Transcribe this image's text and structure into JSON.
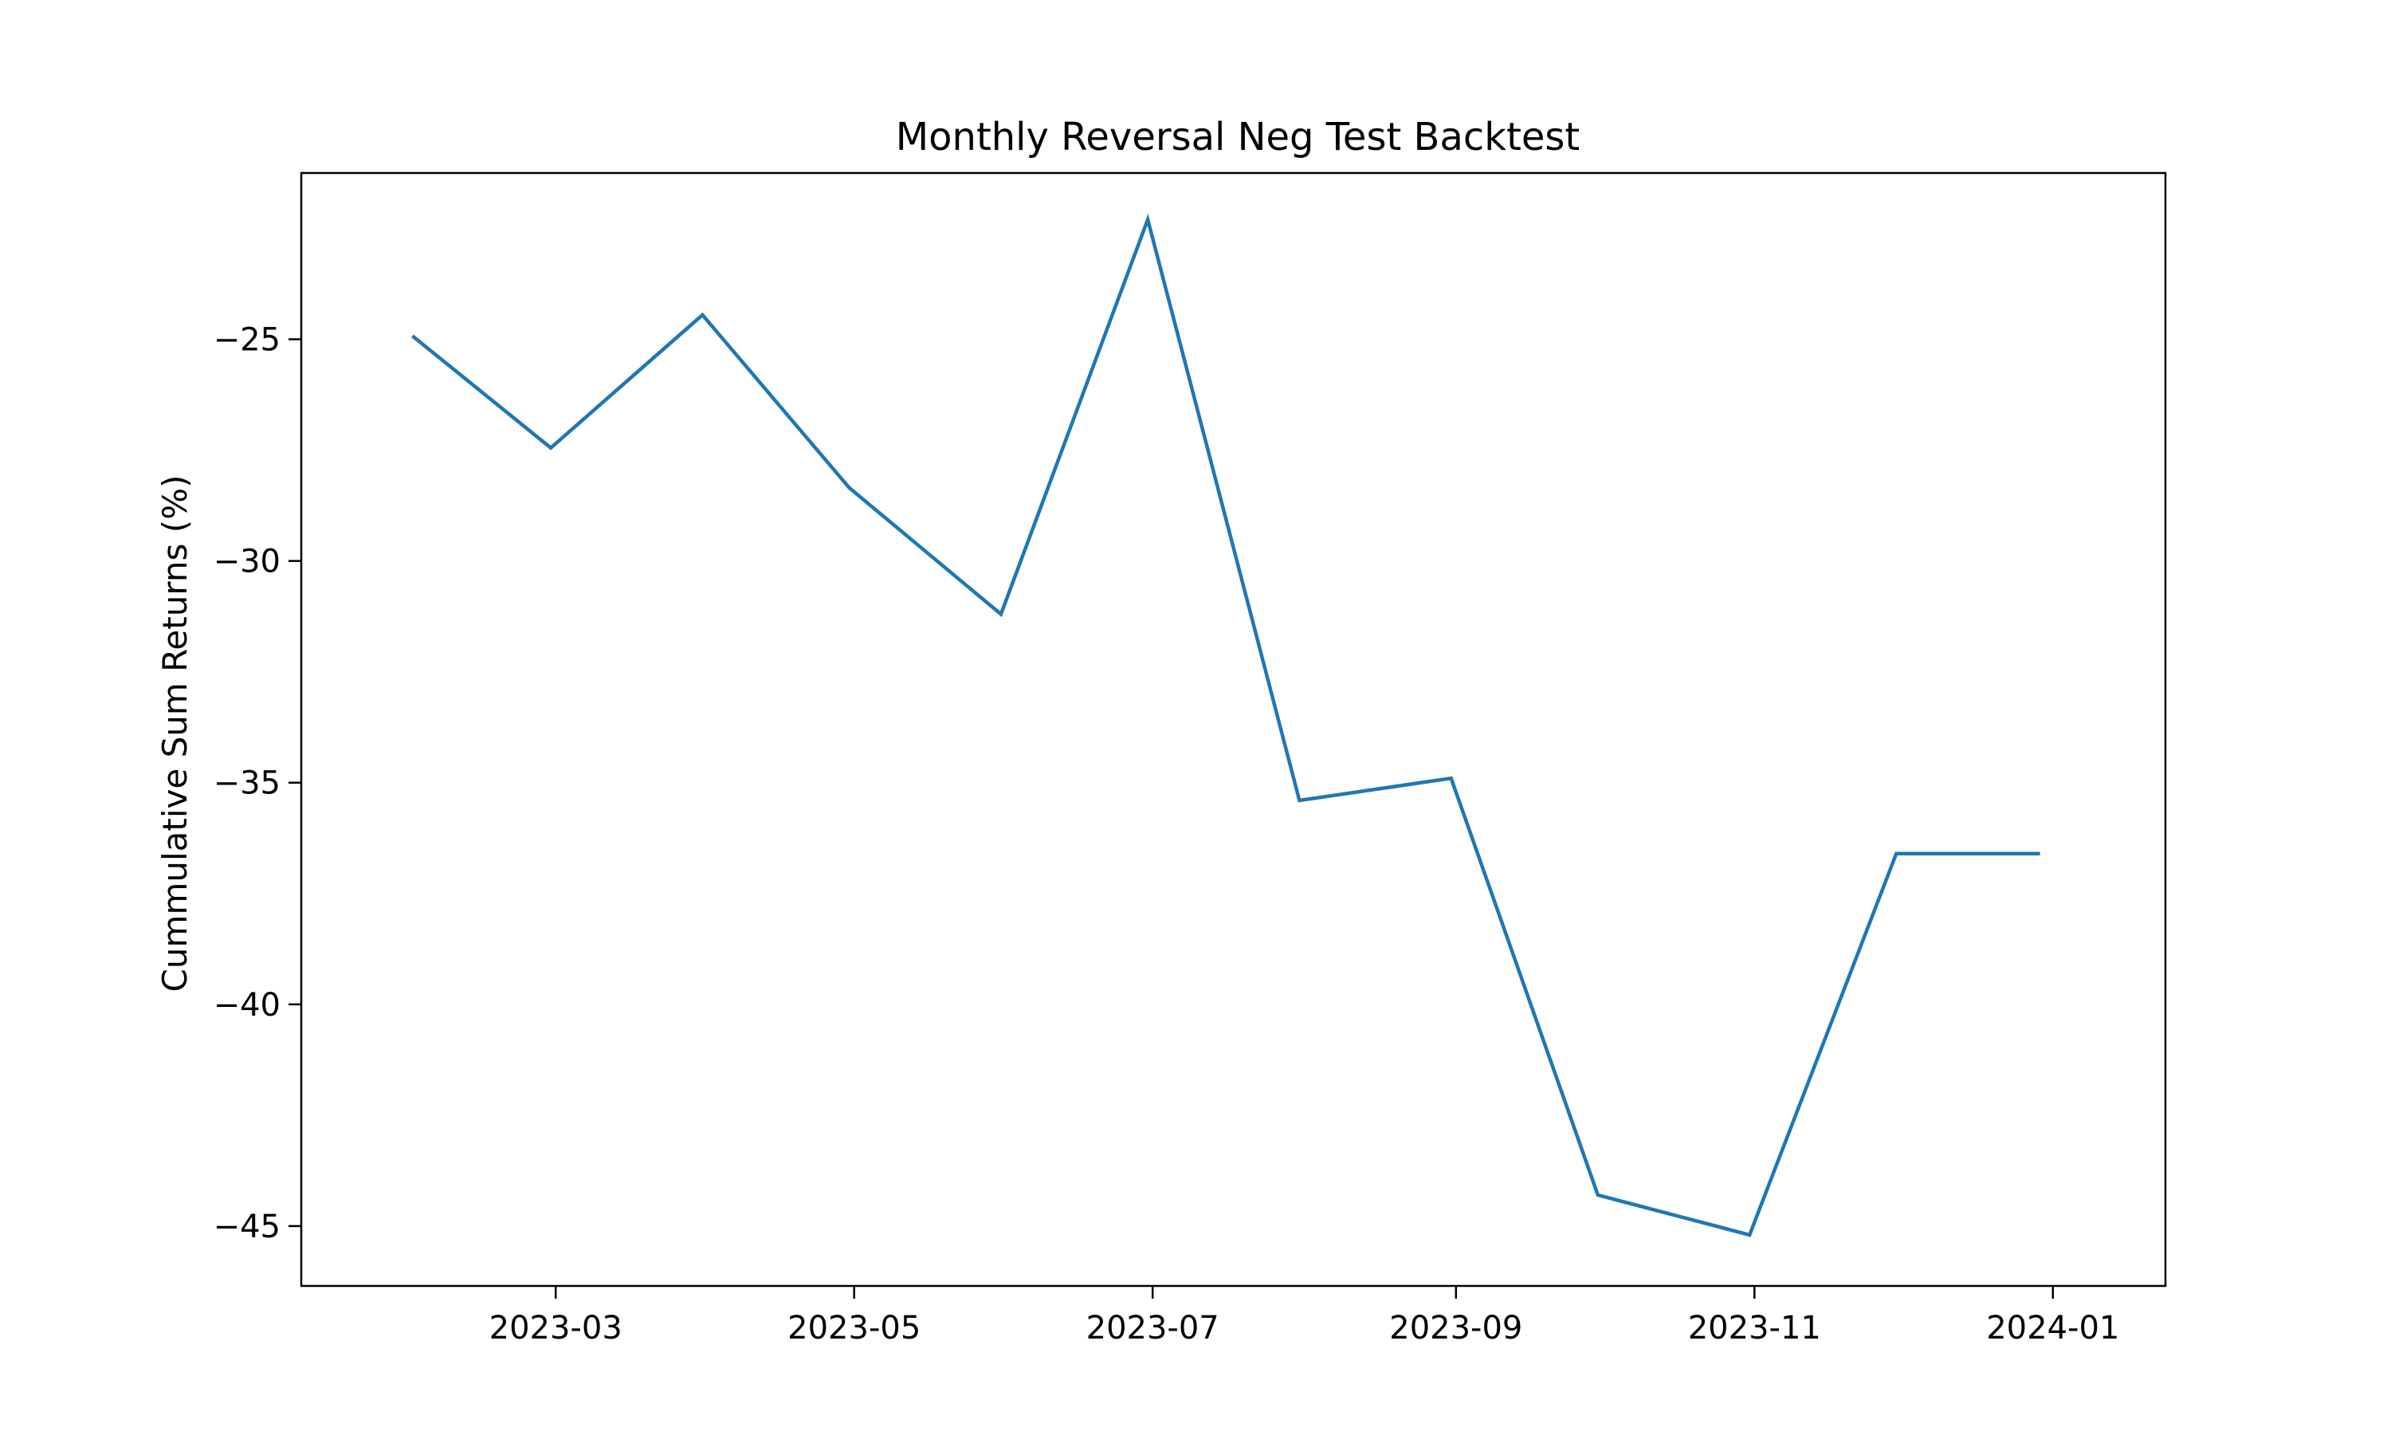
{
  "chart_data": {
    "type": "line",
    "title": "Monthly Reversal Neg Test Backtest",
    "xlabel": "",
    "ylabel": "Cummulative Sum Returns (%)",
    "x_ticks": [
      "2023-03",
      "2023-05",
      "2023-07",
      "2023-09",
      "2023-11",
      "2024-01"
    ],
    "y_ticks": [
      -25,
      -30,
      -35,
      -40,
      -45
    ],
    "xlim": [
      "2023-01-08",
      "2024-01-24"
    ],
    "ylim": [
      -46.35,
      -21.25
    ],
    "grid": false,
    "series": [
      {
        "name": "",
        "color": "#1f77b4",
        "x": [
          "2023-01-31",
          "2023-02-28",
          "2023-03-31",
          "2023-04-30",
          "2023-05-31",
          "2023-06-30",
          "2023-07-31",
          "2023-08-31",
          "2023-09-30",
          "2023-10-31",
          "2023-11-30",
          "2023-12-29"
        ],
        "y": [
          -24.95,
          -27.45,
          -24.45,
          -28.35,
          -31.2,
          -22.3,
          -35.4,
          -34.9,
          -44.3,
          -45.2,
          -36.6,
          -36.6
        ]
      }
    ]
  }
}
